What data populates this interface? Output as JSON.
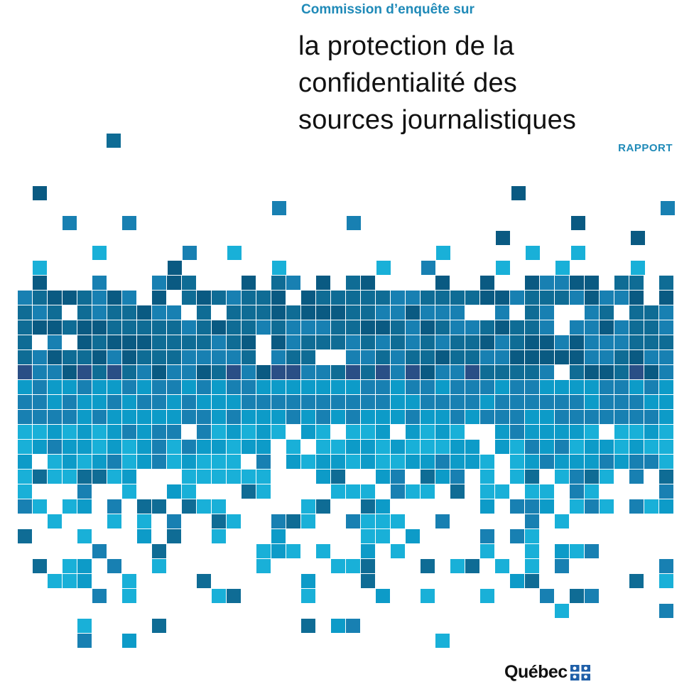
{
  "header": {
    "kicker": "Commission d’enquête sur",
    "title_lines": [
      "la protection de la",
      "confidentialité des",
      "sources journalistiques"
    ],
    "label": "RAPPORT"
  },
  "logo": {
    "word": "Québec",
    "icon": "fleur-de-lis-flag-icon"
  },
  "colors": {
    "accent": "#1f8ab8",
    "tile_palette": [
      "#0f6c95",
      "#1880b2",
      "#0d9bc8",
      "#19b0d8",
      "#2a4f86",
      "#0a5a82"
    ]
  }
}
